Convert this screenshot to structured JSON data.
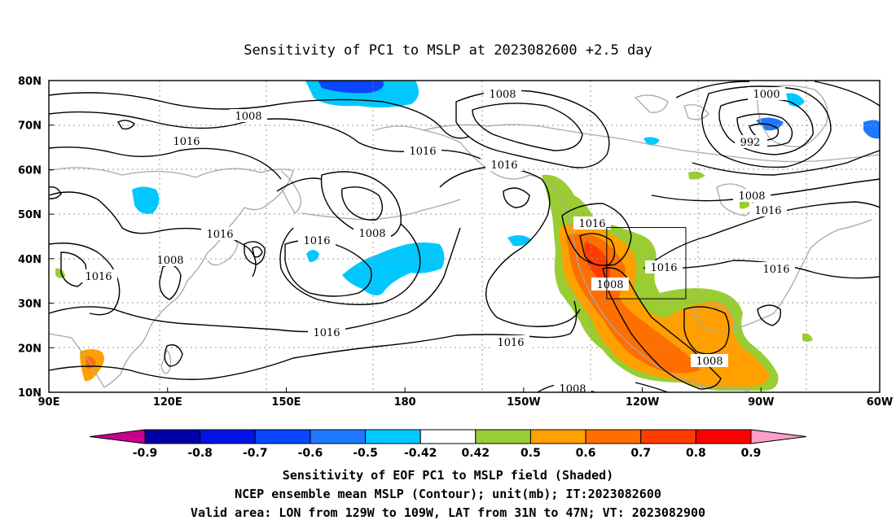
{
  "title": "Sensitivity of PC1 to MSLP at 2023082600 +2.5 day",
  "map": {
    "lon_ticks": [
      "90E",
      "120E",
      "150E",
      "180",
      "150W",
      "120W",
      "90W",
      "60W"
    ],
    "lat_ticks": [
      "10N",
      "20N",
      "30N",
      "40N",
      "50N",
      "60N",
      "70N",
      "80N"
    ],
    "lon_range": [
      90,
      300
    ],
    "lat_range": [
      10,
      80
    ],
    "valid_box": {
      "lon_w": -129,
      "lon_e": -109,
      "lat_s": 31,
      "lat_n": 47
    },
    "contour_labels": [
      "1008",
      "1000",
      "992",
      "1016",
      "1016",
      "1016",
      "1008",
      "1016",
      "1016",
      "1016",
      "1008",
      "1016",
      "1016",
      "1008",
      "1016",
      "1016",
      "1008",
      "1016",
      "1016",
      "1008",
      "1008",
      "1008"
    ]
  },
  "colorbar": {
    "labels": [
      "-0.9",
      "-0.8",
      "-0.7",
      "-0.6",
      "-0.5",
      "-0.42",
      "0.42",
      "0.5",
      "0.6",
      "0.7",
      "0.8",
      "0.9"
    ],
    "colors": [
      "#0000a8",
      "#0014e6",
      "#0a46ff",
      "#1e78ff",
      "#00c8ff",
      "#ffffff",
      "#9acd32",
      "#ffa000",
      "#ff6e00",
      "#ff3c00",
      "#ff0000"
    ],
    "low_end_color": "#c8008c",
    "high_end_color": "#ff9ec8"
  },
  "captions": [
    "Sensitivity of EOF PC1 to MSLP field (Shaded)",
    "NCEP ensemble mean MSLP (Contour); unit(mb); IT:2023082600",
    "Valid area: LON from 129W to 109W, LAT from 31N to 47N; VT: 2023082900"
  ]
}
